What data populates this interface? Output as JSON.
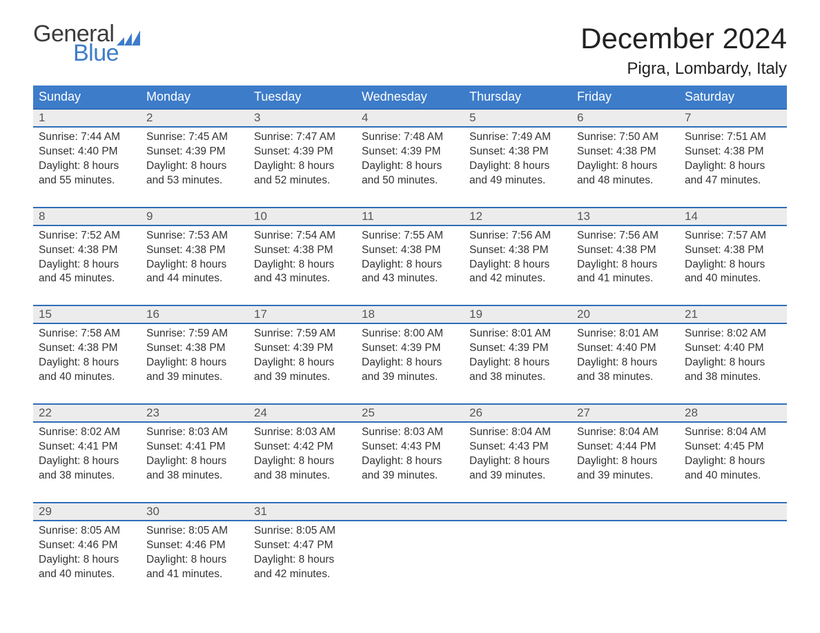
{
  "brand": {
    "word1": "General",
    "word2": "Blue",
    "word1_color": "#3c3c3c",
    "word2_color": "#3d7cc9",
    "fan_color": "#3d7cc9"
  },
  "header": {
    "title": "December 2024",
    "location": "Pigra, Lombardy, Italy"
  },
  "colors": {
    "header_blue": "#3d7cc9",
    "row_band": "#ececec",
    "border_blue": "#2f6db8",
    "text": "#333333",
    "background": "#ffffff"
  },
  "dayHeaders": [
    "Sunday",
    "Monday",
    "Tuesday",
    "Wednesday",
    "Thursday",
    "Friday",
    "Saturday"
  ],
  "labels": {
    "sunrise": "Sunrise:",
    "sunset": "Sunset:",
    "daylight_prefix": "Daylight:",
    "daylight_and": "and",
    "daylight_hours_word": "hours",
    "daylight_minutes_word": "minutes."
  },
  "weeks": [
    [
      {
        "day": 1,
        "sunrise": "7:44 AM",
        "sunset": "4:40 PM",
        "dh": 8,
        "dm": 55
      },
      {
        "day": 2,
        "sunrise": "7:45 AM",
        "sunset": "4:39 PM",
        "dh": 8,
        "dm": 53
      },
      {
        "day": 3,
        "sunrise": "7:47 AM",
        "sunset": "4:39 PM",
        "dh": 8,
        "dm": 52
      },
      {
        "day": 4,
        "sunrise": "7:48 AM",
        "sunset": "4:39 PM",
        "dh": 8,
        "dm": 50
      },
      {
        "day": 5,
        "sunrise": "7:49 AM",
        "sunset": "4:38 PM",
        "dh": 8,
        "dm": 49
      },
      {
        "day": 6,
        "sunrise": "7:50 AM",
        "sunset": "4:38 PM",
        "dh": 8,
        "dm": 48
      },
      {
        "day": 7,
        "sunrise": "7:51 AM",
        "sunset": "4:38 PM",
        "dh": 8,
        "dm": 47
      }
    ],
    [
      {
        "day": 8,
        "sunrise": "7:52 AM",
        "sunset": "4:38 PM",
        "dh": 8,
        "dm": 45
      },
      {
        "day": 9,
        "sunrise": "7:53 AM",
        "sunset": "4:38 PM",
        "dh": 8,
        "dm": 44
      },
      {
        "day": 10,
        "sunrise": "7:54 AM",
        "sunset": "4:38 PM",
        "dh": 8,
        "dm": 43
      },
      {
        "day": 11,
        "sunrise": "7:55 AM",
        "sunset": "4:38 PM",
        "dh": 8,
        "dm": 43
      },
      {
        "day": 12,
        "sunrise": "7:56 AM",
        "sunset": "4:38 PM",
        "dh": 8,
        "dm": 42
      },
      {
        "day": 13,
        "sunrise": "7:56 AM",
        "sunset": "4:38 PM",
        "dh": 8,
        "dm": 41
      },
      {
        "day": 14,
        "sunrise": "7:57 AM",
        "sunset": "4:38 PM",
        "dh": 8,
        "dm": 40
      }
    ],
    [
      {
        "day": 15,
        "sunrise": "7:58 AM",
        "sunset": "4:38 PM",
        "dh": 8,
        "dm": 40
      },
      {
        "day": 16,
        "sunrise": "7:59 AM",
        "sunset": "4:38 PM",
        "dh": 8,
        "dm": 39
      },
      {
        "day": 17,
        "sunrise": "7:59 AM",
        "sunset": "4:39 PM",
        "dh": 8,
        "dm": 39
      },
      {
        "day": 18,
        "sunrise": "8:00 AM",
        "sunset": "4:39 PM",
        "dh": 8,
        "dm": 39
      },
      {
        "day": 19,
        "sunrise": "8:01 AM",
        "sunset": "4:39 PM",
        "dh": 8,
        "dm": 38
      },
      {
        "day": 20,
        "sunrise": "8:01 AM",
        "sunset": "4:40 PM",
        "dh": 8,
        "dm": 38
      },
      {
        "day": 21,
        "sunrise": "8:02 AM",
        "sunset": "4:40 PM",
        "dh": 8,
        "dm": 38
      }
    ],
    [
      {
        "day": 22,
        "sunrise": "8:02 AM",
        "sunset": "4:41 PM",
        "dh": 8,
        "dm": 38
      },
      {
        "day": 23,
        "sunrise": "8:03 AM",
        "sunset": "4:41 PM",
        "dh": 8,
        "dm": 38
      },
      {
        "day": 24,
        "sunrise": "8:03 AM",
        "sunset": "4:42 PM",
        "dh": 8,
        "dm": 38
      },
      {
        "day": 25,
        "sunrise": "8:03 AM",
        "sunset": "4:43 PM",
        "dh": 8,
        "dm": 39
      },
      {
        "day": 26,
        "sunrise": "8:04 AM",
        "sunset": "4:43 PM",
        "dh": 8,
        "dm": 39
      },
      {
        "day": 27,
        "sunrise": "8:04 AM",
        "sunset": "4:44 PM",
        "dh": 8,
        "dm": 39
      },
      {
        "day": 28,
        "sunrise": "8:04 AM",
        "sunset": "4:45 PM",
        "dh": 8,
        "dm": 40
      }
    ],
    [
      {
        "day": 29,
        "sunrise": "8:05 AM",
        "sunset": "4:46 PM",
        "dh": 8,
        "dm": 40
      },
      {
        "day": 30,
        "sunrise": "8:05 AM",
        "sunset": "4:46 PM",
        "dh": 8,
        "dm": 41
      },
      {
        "day": 31,
        "sunrise": "8:05 AM",
        "sunset": "4:47 PM",
        "dh": 8,
        "dm": 42
      },
      null,
      null,
      null,
      null
    ]
  ]
}
